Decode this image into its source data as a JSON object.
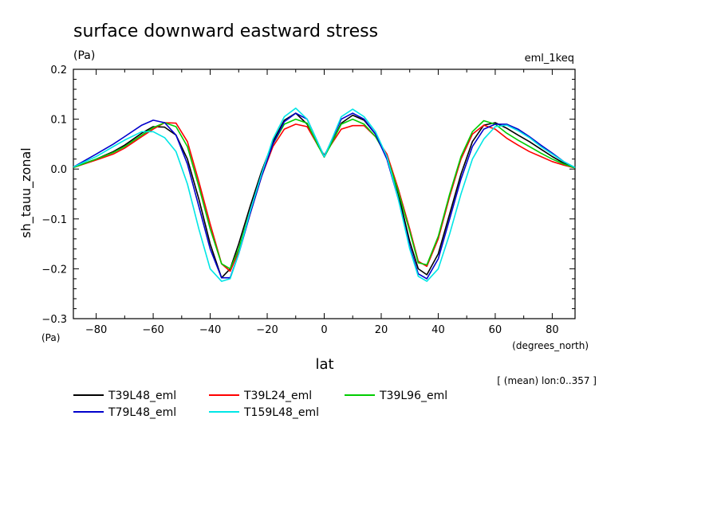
{
  "chart_data": {
    "type": "line",
    "title": "surface downward eastward stress",
    "units_label": "(Pa)",
    "run_label": "eml_1keq",
    "xlabel": "lat",
    "xunits_label": "(degrees_north)",
    "ylabel": "sh_tauu_zonal",
    "yunits_label": "(Pa)",
    "mean_note": "[ (mean) lon:0..357 ]",
    "xlim": [
      -88,
      88
    ],
    "ylim": [
      -0.3,
      0.2
    ],
    "xticks": [
      -80,
      -60,
      -40,
      -20,
      0,
      20,
      40,
      60,
      80
    ],
    "xtick_labels": [
      "−80",
      "−60",
      "−40",
      "−20",
      "0",
      "20",
      "40",
      "60",
      "80"
    ],
    "yticks": [
      -0.3,
      -0.2,
      -0.1,
      0.0,
      0.1,
      0.2
    ],
    "ytick_labels": [
      "−0.3",
      "−0.2",
      "−0.1",
      "0.0",
      "0.1",
      "0.2"
    ],
    "grid": false,
    "legend_position": "bottom",
    "series": [
      {
        "name": "T39L48_eml",
        "color": "#000000",
        "x": [
          -88,
          -80,
          -74,
          -70,
          -64,
          -60,
          -56,
          -52,
          -48,
          -44,
          -40,
          -36,
          -33,
          -30,
          -26,
          -22,
          -18,
          -14,
          -10,
          -6,
          -2,
          0,
          2,
          6,
          10,
          14,
          18,
          22,
          26,
          30,
          33,
          36,
          40,
          44,
          48,
          52,
          56,
          60,
          64,
          68,
          72,
          76,
          80,
          84,
          88
        ],
        "y": [
          0.003,
          0.02,
          0.035,
          0.048,
          0.072,
          0.085,
          0.084,
          0.068,
          0.02,
          -0.06,
          -0.15,
          -0.218,
          -0.2,
          -0.15,
          -0.075,
          -0.005,
          0.055,
          0.098,
          0.112,
          0.09,
          0.045,
          0.028,
          0.045,
          0.092,
          0.108,
          0.098,
          0.07,
          0.025,
          -0.05,
          -0.145,
          -0.2,
          -0.212,
          -0.17,
          -0.09,
          -0.01,
          0.055,
          0.088,
          0.093,
          0.082,
          0.068,
          0.055,
          0.04,
          0.025,
          0.012,
          0.003
        ]
      },
      {
        "name": "T39L24_eml",
        "color": "#ff0000",
        "x": [
          -88,
          -80,
          -74,
          -70,
          -64,
          -60,
          -56,
          -52,
          -48,
          -44,
          -40,
          -36,
          -33,
          -30,
          -26,
          -22,
          -18,
          -14,
          -10,
          -6,
          -2,
          0,
          2,
          6,
          10,
          14,
          18,
          22,
          26,
          30,
          33,
          36,
          40,
          44,
          48,
          52,
          56,
          60,
          64,
          68,
          72,
          76,
          80,
          84,
          88
        ],
        "y": [
          0.003,
          0.018,
          0.03,
          0.042,
          0.065,
          0.08,
          0.093,
          0.092,
          0.055,
          -0.025,
          -0.11,
          -0.19,
          -0.205,
          -0.165,
          -0.09,
          -0.015,
          0.045,
          0.08,
          0.09,
          0.085,
          0.045,
          0.027,
          0.045,
          0.08,
          0.087,
          0.087,
          0.065,
          0.03,
          -0.04,
          -0.12,
          -0.185,
          -0.195,
          -0.14,
          -0.055,
          0.02,
          0.07,
          0.088,
          0.08,
          0.062,
          0.048,
          0.035,
          0.025,
          0.015,
          0.008,
          0.002
        ]
      },
      {
        "name": "T39L96_eml",
        "color": "#00cc00",
        "x": [
          -88,
          -80,
          -74,
          -70,
          -64,
          -60,
          -56,
          -52,
          -48,
          -44,
          -40,
          -36,
          -33,
          -30,
          -26,
          -22,
          -18,
          -14,
          -10,
          -6,
          -2,
          0,
          2,
          6,
          10,
          14,
          18,
          22,
          26,
          30,
          33,
          36,
          40,
          44,
          48,
          52,
          56,
          60,
          64,
          68,
          72,
          76,
          80,
          84,
          88
        ],
        "y": [
          0.003,
          0.02,
          0.033,
          0.045,
          0.068,
          0.083,
          0.093,
          0.085,
          0.045,
          -0.035,
          -0.12,
          -0.19,
          -0.2,
          -0.16,
          -0.085,
          -0.012,
          0.05,
          0.09,
          0.1,
          0.092,
          0.045,
          0.024,
          0.045,
          0.09,
          0.1,
          0.09,
          0.065,
          0.025,
          -0.045,
          -0.125,
          -0.188,
          -0.192,
          -0.135,
          -0.05,
          0.025,
          0.075,
          0.097,
          0.09,
          0.072,
          0.058,
          0.045,
          0.032,
          0.02,
          0.01,
          0.002
        ]
      },
      {
        "name": "T79L48_eml",
        "color": "#0000cc",
        "x": [
          -88,
          -80,
          -74,
          -70,
          -64,
          -60,
          -56,
          -52,
          -48,
          -44,
          -40,
          -36,
          -33,
          -30,
          -26,
          -22,
          -18,
          -14,
          -10,
          -6,
          -2,
          0,
          2,
          6,
          10,
          14,
          18,
          22,
          26,
          30,
          33,
          36,
          40,
          44,
          48,
          52,
          56,
          60,
          64,
          68,
          72,
          76,
          80,
          84,
          88
        ],
        "y": [
          0.004,
          0.03,
          0.05,
          0.065,
          0.088,
          0.098,
          0.093,
          0.068,
          0.01,
          -0.075,
          -0.16,
          -0.218,
          -0.218,
          -0.17,
          -0.09,
          -0.015,
          0.05,
          0.095,
          0.112,
          0.1,
          0.05,
          0.025,
          0.05,
          0.1,
          0.112,
          0.1,
          0.07,
          0.02,
          -0.06,
          -0.155,
          -0.21,
          -0.22,
          -0.18,
          -0.1,
          -0.02,
          0.045,
          0.08,
          0.09,
          0.09,
          0.08,
          0.065,
          0.048,
          0.032,
          0.015,
          0.003
        ]
      },
      {
        "name": "T159L48_eml",
        "color": "#00e6e6",
        "x": [
          -88,
          -80,
          -74,
          -70,
          -64,
          -60,
          -56,
          -52,
          -48,
          -44,
          -40,
          -36,
          -33,
          -30,
          -26,
          -22,
          -18,
          -14,
          -10,
          -6,
          -2,
          0,
          2,
          6,
          10,
          14,
          18,
          22,
          26,
          30,
          33,
          36,
          40,
          44,
          48,
          52,
          56,
          60,
          64,
          68,
          72,
          76,
          80,
          84,
          88
        ],
        "y": [
          0.004,
          0.025,
          0.045,
          0.058,
          0.075,
          0.075,
          0.063,
          0.035,
          -0.03,
          -0.12,
          -0.2,
          -0.225,
          -0.22,
          -0.17,
          -0.085,
          -0.01,
          0.06,
          0.105,
          0.122,
          0.1,
          0.05,
          0.025,
          0.05,
          0.105,
          0.12,
          0.105,
          0.075,
          0.025,
          -0.06,
          -0.16,
          -0.215,
          -0.225,
          -0.2,
          -0.13,
          -0.05,
          0.02,
          0.06,
          0.085,
          0.088,
          0.077,
          0.063,
          0.045,
          0.03,
          0.015,
          0.003
        ]
      }
    ]
  }
}
